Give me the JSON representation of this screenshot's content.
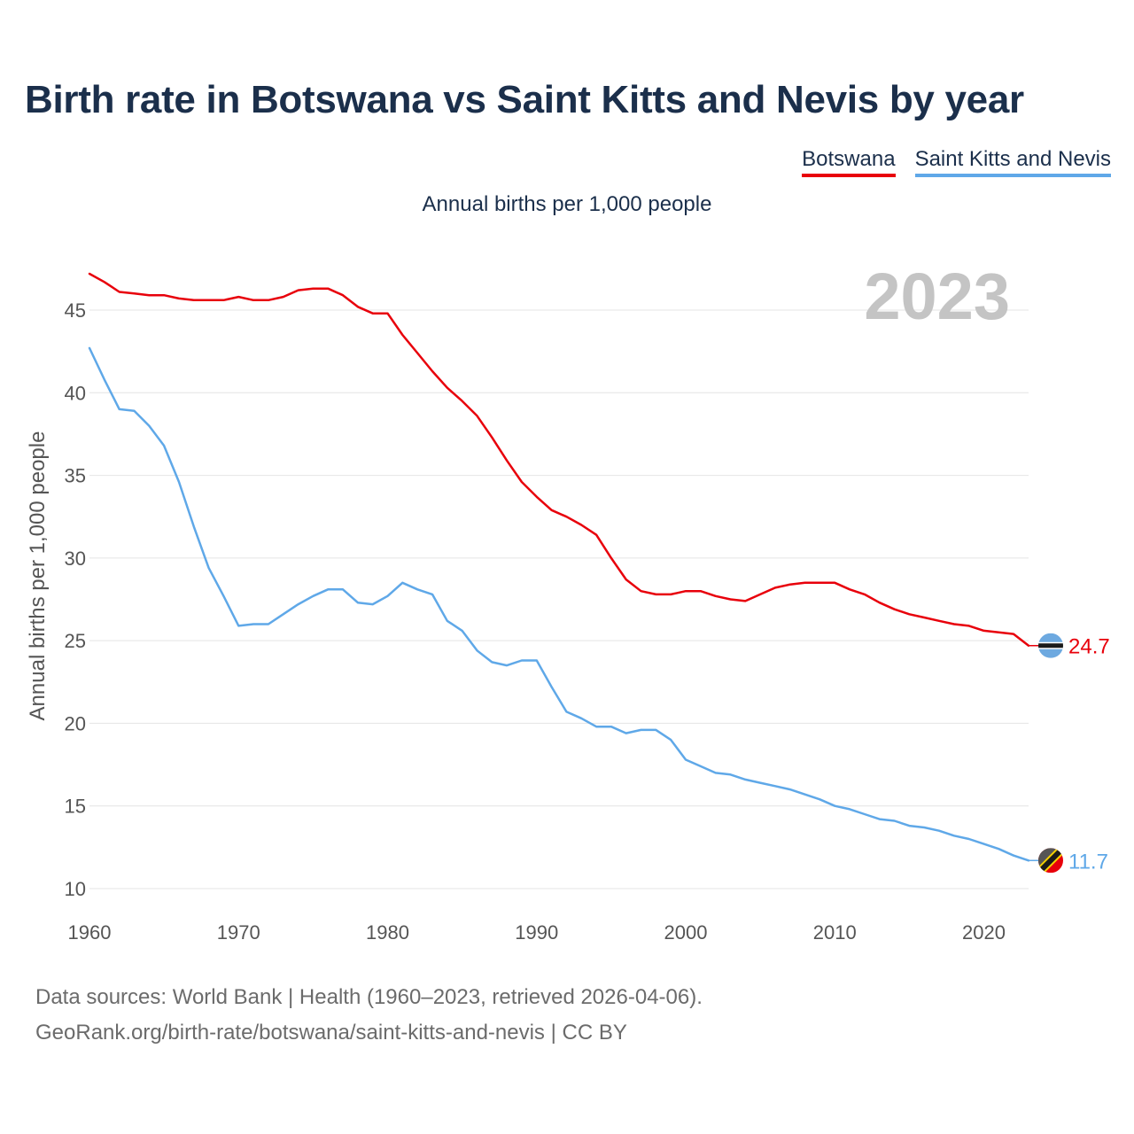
{
  "title": "Birth rate in Botswana vs Saint Kitts and Nevis by year",
  "subtitle": "Annual births per 1,000 people",
  "legend": [
    {
      "label": "Botswana",
      "color": "#e8000b"
    },
    {
      "label": "Saint Kitts and Nevis",
      "color": "#5fa8e8"
    }
  ],
  "footer": {
    "line1": "Data sources: World Bank | Health (1960–2023, retrieved 2026-04-06).",
    "line2": "GeoRank.org/birth-rate/botswana/saint-kitts-and-nevis | CC BY"
  },
  "chart_data": {
    "type": "line",
    "title": "Birth rate in Botswana vs Saint Kitts and Nevis by year",
    "ylabel": "Annual births per 1,000 people",
    "xlabel": "",
    "year_label": "2023",
    "xlim": [
      1960,
      2023
    ],
    "ylim": [
      10,
      47.5
    ],
    "x_ticks": [
      1960,
      1970,
      1980,
      1990,
      2000,
      2010,
      2020
    ],
    "y_ticks": [
      10,
      15,
      20,
      25,
      30,
      35,
      40,
      45
    ],
    "grid": true,
    "legend_position": "top-right",
    "x": [
      1960,
      1961,
      1962,
      1963,
      1964,
      1965,
      1966,
      1967,
      1968,
      1969,
      1970,
      1971,
      1972,
      1973,
      1974,
      1975,
      1976,
      1977,
      1978,
      1979,
      1980,
      1981,
      1982,
      1983,
      1984,
      1985,
      1986,
      1987,
      1988,
      1989,
      1990,
      1991,
      1992,
      1993,
      1994,
      1995,
      1996,
      1997,
      1998,
      1999,
      2000,
      2001,
      2002,
      2003,
      2004,
      2005,
      2006,
      2007,
      2008,
      2009,
      2010,
      2011,
      2012,
      2013,
      2014,
      2015,
      2016,
      2017,
      2018,
      2019,
      2020,
      2021,
      2022,
      2023
    ],
    "series": [
      {
        "name": "Botswana",
        "color": "#e8000b",
        "end_label": "24.7",
        "values": [
          47.2,
          46.7,
          46.1,
          46.0,
          45.9,
          45.9,
          45.7,
          45.6,
          45.6,
          45.6,
          45.8,
          45.6,
          45.6,
          45.8,
          46.2,
          46.3,
          46.3,
          45.9,
          45.2,
          44.8,
          44.8,
          43.5,
          42.4,
          41.3,
          40.3,
          39.5,
          38.6,
          37.3,
          35.9,
          34.6,
          33.7,
          32.9,
          32.5,
          32.0,
          31.4,
          30.0,
          28.7,
          28.0,
          27.8,
          27.8,
          28.0,
          28.0,
          27.7,
          27.5,
          27.4,
          27.8,
          28.2,
          28.4,
          28.5,
          28.5,
          28.5,
          28.1,
          27.8,
          27.3,
          26.9,
          26.6,
          26.4,
          26.2,
          26.0,
          25.9,
          25.6,
          25.5,
          25.4,
          24.7
        ]
      },
      {
        "name": "Saint Kitts and Nevis",
        "color": "#5fa8e8",
        "end_label": "11.7",
        "values": [
          42.7,
          40.8,
          39.0,
          38.9,
          38.0,
          36.8,
          34.6,
          31.9,
          29.4,
          27.7,
          25.9,
          26.0,
          26.0,
          26.6,
          27.2,
          27.7,
          28.1,
          28.1,
          27.3,
          27.2,
          27.7,
          28.5,
          28.1,
          27.8,
          26.2,
          25.6,
          24.4,
          23.7,
          23.5,
          23.8,
          23.8,
          22.2,
          20.7,
          20.3,
          19.8,
          19.8,
          19.4,
          19.6,
          19.6,
          19.0,
          17.8,
          17.4,
          17.0,
          16.9,
          16.6,
          16.4,
          16.2,
          16.0,
          15.7,
          15.4,
          15.0,
          14.8,
          14.5,
          14.2,
          14.1,
          13.8,
          13.7,
          13.5,
          13.2,
          13.0,
          12.7,
          12.4,
          12.0,
          11.7
        ]
      }
    ]
  }
}
